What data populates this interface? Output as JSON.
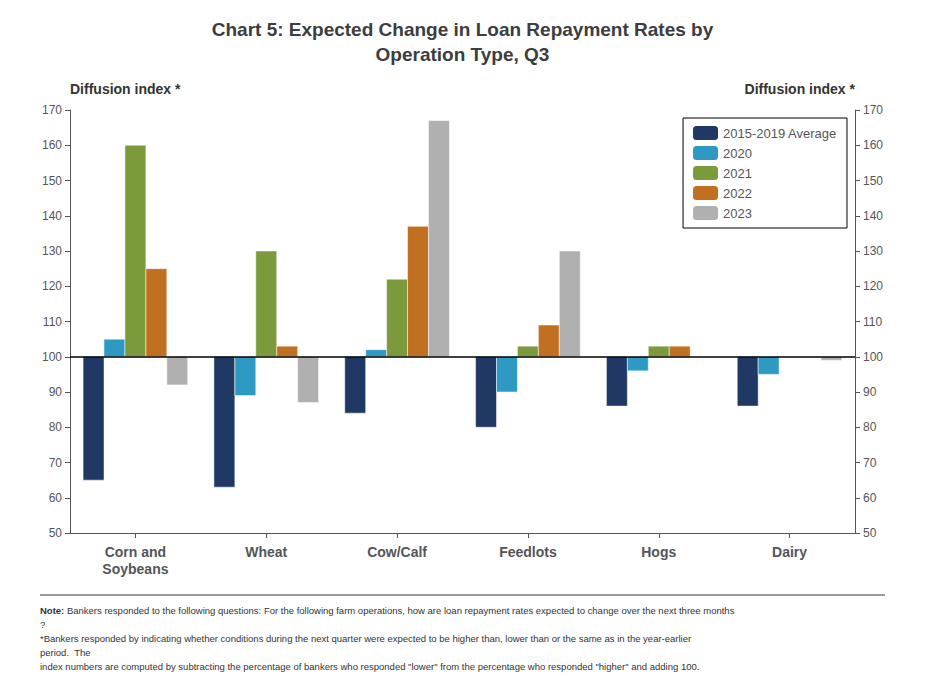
{
  "chart_data": {
    "type": "bar",
    "title": "Chart 5: Expected Change in Loan Repayment Rates by\nOperation Type, Q3",
    "categories": [
      "Corn and\nSoybeans",
      "Wheat",
      "Cow/Calf",
      "Feedlots",
      "Hogs",
      "Dairy"
    ],
    "series": [
      {
        "name": "2015-2019 Average",
        "color": "#1f3864",
        "values": [
          65,
          63,
          84,
          80,
          86,
          86
        ]
      },
      {
        "name": "2020",
        "color": "#2e9ac4",
        "values": [
          105,
          89,
          102,
          90,
          96,
          95
        ]
      },
      {
        "name": "2021",
        "color": "#7a9a3b",
        "values": [
          160,
          130,
          122,
          103,
          103,
          100
        ]
      },
      {
        "name": "2022",
        "color": "#c07020",
        "values": [
          125,
          103,
          137,
          109,
          103,
          100
        ]
      },
      {
        "name": "2023",
        "color": "#b0b0b0",
        "values": [
          92,
          87,
          167,
          130,
          100,
          99
        ]
      }
    ],
    "baseline": 100,
    "ylim": [
      50,
      170
    ],
    "yticks": [
      50,
      60,
      70,
      80,
      90,
      100,
      110,
      120,
      130,
      140,
      150,
      160,
      170
    ],
    "y2lim": [
      50,
      170
    ],
    "y2ticks": [
      50,
      60,
      70,
      80,
      90,
      100,
      110,
      120,
      130,
      140,
      150,
      160,
      170
    ],
    "ylabel": "Diffusion index *",
    "y2label": "Diffusion index *",
    "grid": false,
    "legend": "upper right",
    "note_label": "Note:",
    "notes": [
      " Bankers responded to the following questions: For the following farm operations, how are loan repayment rates expected to change over the next three months?",
      "*Bankers responded by indicating whether conditions during the next quarter were expected to be higher than, lower than or the same as in the year-earlier period.  The",
      "index numbers are computed by subtracting the percentage of bankers who responded \"lower\" from the percentage who responded \"higher\" and adding 100."
    ]
  }
}
